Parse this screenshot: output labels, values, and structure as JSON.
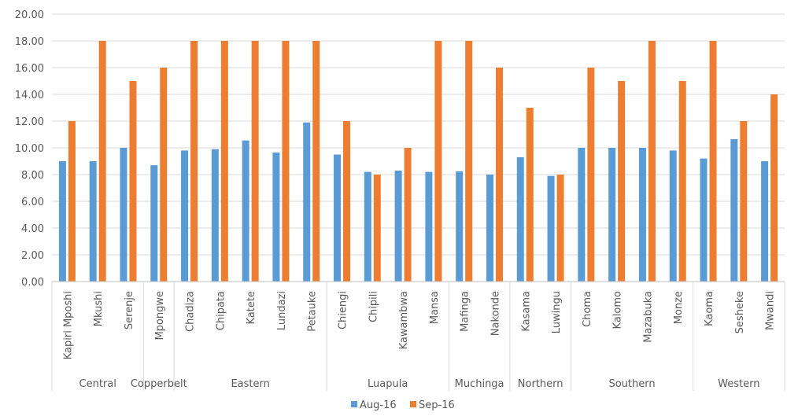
{
  "chart_data": {
    "type": "bar",
    "title": "",
    "xlabel": "",
    "ylabel": "",
    "ylim": [
      0,
      20
    ],
    "y_ticks": [
      "0.00",
      "2.00",
      "4.00",
      "6.00",
      "8.00",
      "10.00",
      "12.00",
      "14.00",
      "16.00",
      "18.00",
      "20.00"
    ],
    "grid": true,
    "legend_position": "bottom",
    "categories": [
      "Kapiri Mposhi",
      "Mkushi",
      "Serenje",
      "Mpongwe",
      "Chadiza",
      "Chipata",
      "Katete",
      "Lundazi",
      "Petauke",
      "Chiengi",
      "Chipili",
      "Kawambwa",
      "Mansa",
      "Mafinga",
      "Nakonde",
      "Kasama",
      "Luwingu",
      "Choma",
      "Kalomo",
      "Mazabuka",
      "Monze",
      "Kaoma",
      "Sesheke",
      "Mwandi"
    ],
    "groups": [
      {
        "name": "Central",
        "count": 3
      },
      {
        "name": "Copperbelt",
        "count": 1
      },
      {
        "name": "Eastern",
        "count": 5
      },
      {
        "name": "Luapula",
        "count": 4
      },
      {
        "name": "Muchinga",
        "count": 2
      },
      {
        "name": "Northern",
        "count": 2
      },
      {
        "name": "Southern",
        "count": 4
      },
      {
        "name": "Western",
        "count": 3
      }
    ],
    "series": [
      {
        "name": "Aug-16",
        "color": "#5B9BD5",
        "values": [
          9.0,
          9.0,
          10.0,
          8.7,
          9.8,
          9.9,
          10.55,
          9.65,
          11.9,
          9.5,
          8.2,
          8.3,
          8.2,
          8.25,
          8.0,
          9.3,
          7.9,
          10.0,
          10.0,
          10.0,
          9.8,
          9.2,
          10.65,
          9.0
        ]
      },
      {
        "name": "Sep-16",
        "color": "#ED7D31",
        "values": [
          12,
          18,
          15,
          16,
          18,
          18,
          18,
          18,
          18,
          12,
          8,
          10,
          18,
          18,
          16,
          13,
          8,
          16,
          15,
          18,
          15,
          18,
          12,
          14
        ]
      }
    ]
  }
}
